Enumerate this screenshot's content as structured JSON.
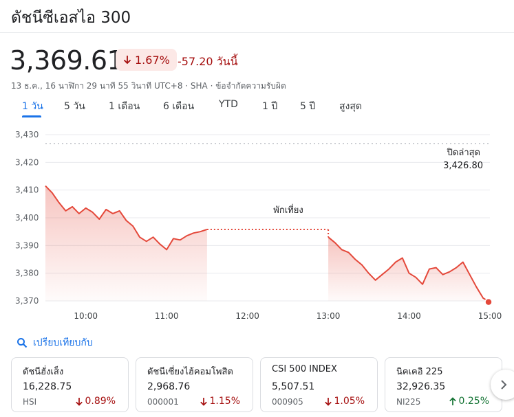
{
  "title": "ดัชนีซีเอสไอ 300",
  "price": "3,369.61",
  "pct_change": "1.67%",
  "abs_change": "-57.20 วันนี้",
  "meta": "13 ธ.ค., 16 นาฬิกา 29 นาที 55 วินาที UTC+8 · SHA · ข้อจำกัดความรับผิด",
  "colors": {
    "down": "#a50e0e",
    "up": "#137333",
    "line": "#e4483a",
    "accent": "#1a73e8"
  },
  "tabs": [
    "1 วัน",
    "5 วัน",
    "1 เดือน",
    "6 เดือน",
    "YTD",
    "1 ปี",
    "5 ปี",
    "สูงสุด"
  ],
  "active_tab": "1 วัน",
  "chart_data": {
    "type": "line",
    "ylim": [
      3370,
      3430
    ],
    "y_ticks": [
      "3,430",
      "3,420",
      "3,410",
      "3,400",
      "3,390",
      "3,380",
      "3,370"
    ],
    "x_ticks": [
      "10:00",
      "11:00",
      "12:00",
      "13:00",
      "14:00",
      "15:00"
    ],
    "previous_close_label": "ปิดล่าสุด",
    "previous_close": "3,426.80",
    "previous_close_value": 3426.8,
    "break_label": "พักเที่ยง",
    "break_range": [
      "11:30",
      "13:00"
    ],
    "series": [
      {
        "x": [
          "09:30",
          "09:35",
          "09:40",
          "09:45",
          "09:50",
          "09:55",
          "10:00",
          "10:05",
          "10:10",
          "10:15",
          "10:20",
          "10:25",
          "10:30",
          "10:35",
          "10:40",
          "10:45",
          "10:50",
          "10:55",
          "11:00",
          "11:05",
          "11:10",
          "11:15",
          "11:20",
          "11:25",
          "11:30"
        ],
        "values": [
          3411.5,
          3409.0,
          3405.5,
          3402.5,
          3404.0,
          3401.5,
          3403.5,
          3402.0,
          3399.5,
          3403.0,
          3401.5,
          3402.5,
          3399.0,
          3397.0,
          3393.0,
          3391.5,
          3393.0,
          3390.5,
          3388.5,
          3392.5,
          3392.0,
          3393.5,
          3394.5,
          3395.0,
          3395.8
        ]
      },
      {
        "x": [
          "13:00",
          "13:05",
          "13:10",
          "13:15",
          "13:20",
          "13:25",
          "13:30",
          "13:35",
          "13:40",
          "13:45",
          "13:50",
          "13:55",
          "14:00",
          "14:05",
          "14:10",
          "14:15",
          "14:20",
          "14:25",
          "14:30",
          "14:35",
          "14:40",
          "14:45",
          "14:50",
          "14:55",
          "15:00"
        ],
        "values": [
          3393.0,
          3391.0,
          3388.5,
          3387.5,
          3385.0,
          3383.0,
          3380.0,
          3377.5,
          3379.5,
          3381.5,
          3384.0,
          3385.5,
          3380.0,
          3378.5,
          3376.0,
          3381.5,
          3382.0,
          3379.5,
          3380.5,
          3382.0,
          3384.0,
          3379.5,
          3375.0,
          3371.0,
          3369.61
        ]
      }
    ]
  },
  "compare_label": "เปรียบเทียบกับ",
  "compare_icon": "search-icon",
  "cards": [
    {
      "name": "ดัชนีฮั่งเส็ง",
      "value": "16,228.75",
      "symbol": "HSI",
      "pct": "0.89%",
      "dir": "down"
    },
    {
      "name": "ดัชนีเซี่ยงไฮ้คอมโพสิต",
      "value": "2,968.76",
      "symbol": "000001",
      "pct": "1.15%",
      "dir": "down"
    },
    {
      "name": "CSI 500 INDEX",
      "value": "5,507.51",
      "symbol": "000905",
      "pct": "1.05%",
      "dir": "down"
    },
    {
      "name": "นิคเคอิ 225",
      "value": "32,926.35",
      "symbol": "NI225",
      "pct": "0.25%",
      "dir": "up"
    }
  ],
  "next_icon": "chevron-right-icon"
}
